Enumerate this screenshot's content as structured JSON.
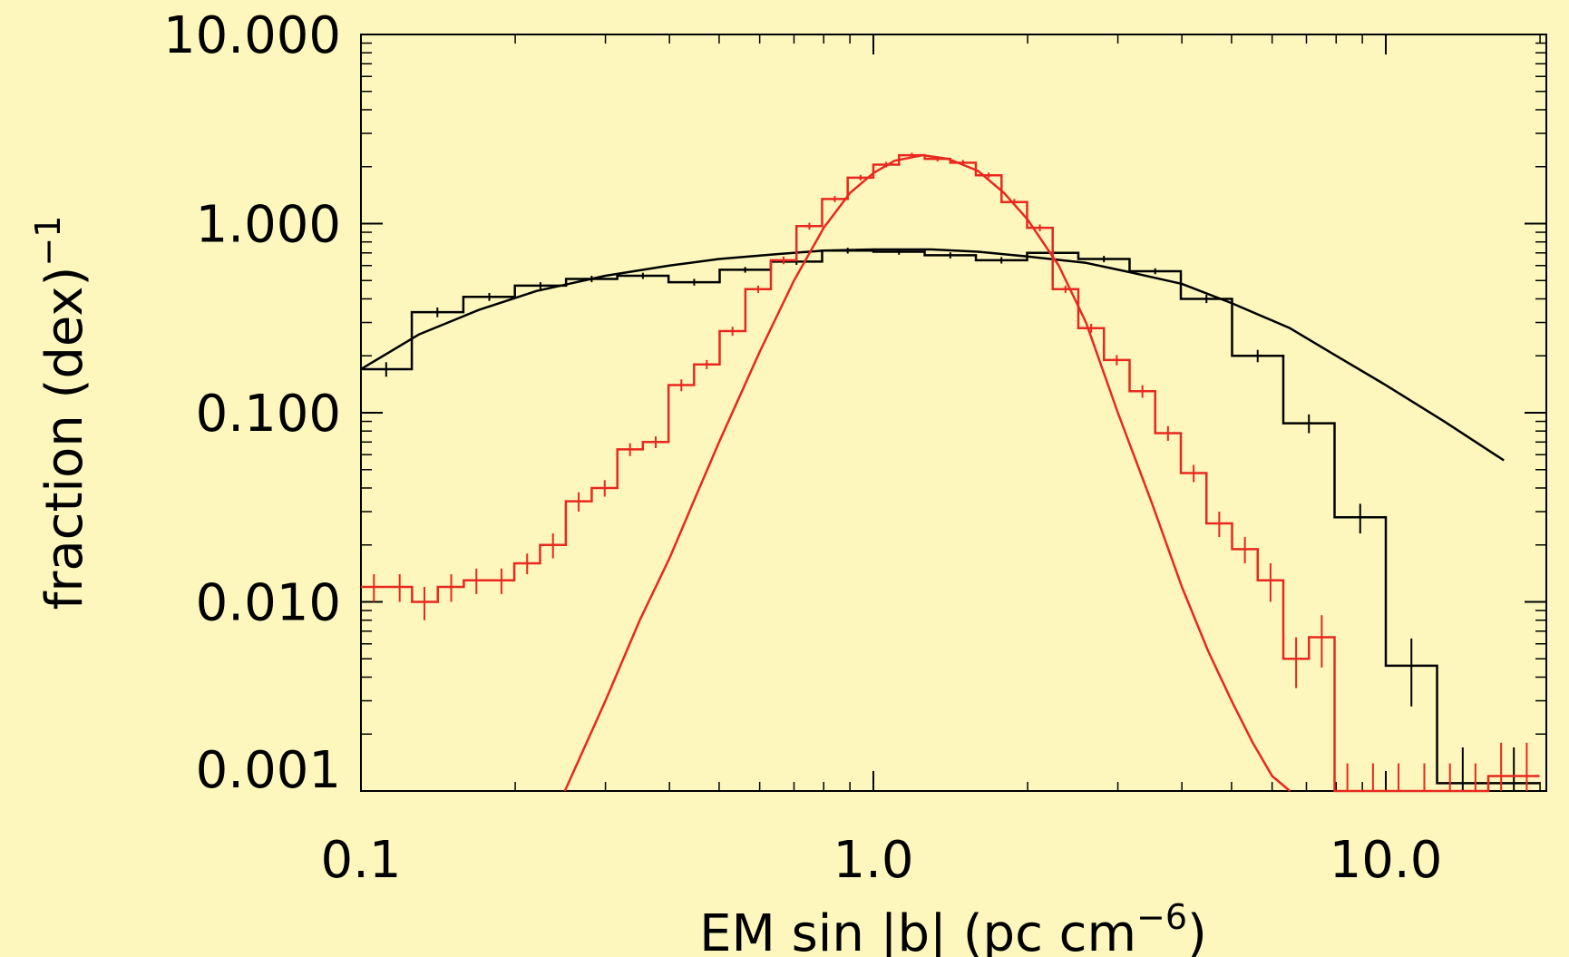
{
  "chart_data": {
    "type": "line",
    "xlabel_main": "EM sin |b| (pc cm",
    "xlabel_sup": "−6",
    "xlabel_close": ")",
    "ylabel_main": "fraction (dex)",
    "ylabel_sup": "−1",
    "x_scale": "log",
    "y_scale": "log",
    "xlim": [
      0.1,
      20.0
    ],
    "ylim": [
      0.001,
      10.0
    ],
    "x_ticks": [
      {
        "value": 0.1,
        "label": "0.1"
      },
      {
        "value": 1.0,
        "label": "1.0"
      },
      {
        "value": 10.0,
        "label": "10.0"
      }
    ],
    "y_ticks": [
      {
        "value": 10.0,
        "label": "10.000"
      },
      {
        "value": 1.0,
        "label": "1.000"
      },
      {
        "value": 0.1,
        "label": "0.100"
      },
      {
        "value": 0.01,
        "label": "0.010"
      },
      {
        "value": 0.001,
        "label": "0.001"
      }
    ],
    "grid": false,
    "legend": "none",
    "colors": {
      "background": "#fdf7bd",
      "black_series": "#000000",
      "red_series": "#e8281e"
    },
    "series": [
      {
        "kind": "histogram",
        "color": "#000000",
        "bin_centers": [
          0.112,
          0.141,
          0.178,
          0.224,
          0.282,
          0.355,
          0.447,
          0.562,
          0.708,
          0.891,
          1.122,
          1.413,
          1.778,
          2.239,
          2.818,
          3.548,
          4.467,
          5.623,
          7.079,
          8.913,
          11.22,
          14.13,
          17.78
        ],
        "values": [
          0.17,
          0.34,
          0.41,
          0.47,
          0.51,
          0.53,
          0.49,
          0.57,
          0.63,
          0.72,
          0.71,
          0.68,
          0.64,
          0.7,
          0.65,
          0.56,
          0.4,
          0.2,
          0.088,
          0.028,
          0.0046,
          0.0011,
          0.0011
        ],
        "errors": [
          0.015,
          0.02,
          0.02,
          0.02,
          0.02,
          0.02,
          0.02,
          0.02,
          0.025,
          0.025,
          0.025,
          0.025,
          0.025,
          0.025,
          0.025,
          0.02,
          0.02,
          0.015,
          0.01,
          0.005,
          0.0018,
          0.0006,
          0.0006
        ]
      },
      {
        "kind": "fit_curve",
        "color": "#000000",
        "x": [
          0.1,
          0.13,
          0.17,
          0.22,
          0.3,
          0.4,
          0.5,
          0.65,
          0.8,
          1.0,
          1.3,
          1.6,
          2.0,
          2.6,
          3.2,
          4.0,
          5.0,
          6.5,
          8.0,
          10.0,
          13.0,
          17.0
        ],
        "y": [
          0.17,
          0.26,
          0.35,
          0.44,
          0.53,
          0.6,
          0.65,
          0.69,
          0.72,
          0.73,
          0.73,
          0.71,
          0.67,
          0.62,
          0.55,
          0.48,
          0.38,
          0.28,
          0.2,
          0.14,
          0.09,
          0.056
        ]
      },
      {
        "kind": "histogram",
        "color": "#e8281e",
        "bin_centers": [
          0.106,
          0.119,
          0.133,
          0.15,
          0.168,
          0.188,
          0.211,
          0.237,
          0.266,
          0.299,
          0.335,
          0.376,
          0.422,
          0.473,
          0.531,
          0.596,
          0.668,
          0.75,
          0.841,
          0.944,
          1.059,
          1.189,
          1.334,
          1.496,
          1.679,
          1.884,
          2.113,
          2.371,
          2.661,
          2.985,
          3.35,
          3.758,
          4.217,
          4.731,
          5.309,
          5.957,
          6.683,
          7.499,
          8.414,
          9.441,
          10.59,
          11.89,
          13.34,
          14.96,
          16.79,
          18.84
        ],
        "values": [
          0.012,
          0.012,
          0.01,
          0.012,
          0.013,
          0.013,
          0.016,
          0.02,
          0.034,
          0.04,
          0.064,
          0.07,
          0.14,
          0.18,
          0.27,
          0.45,
          0.64,
          0.97,
          1.35,
          1.75,
          2.05,
          2.3,
          2.2,
          2.1,
          1.8,
          1.3,
          0.95,
          0.45,
          0.28,
          0.19,
          0.13,
          0.078,
          0.048,
          0.026,
          0.019,
          0.013,
          0.005,
          0.0065,
          0.0008,
          0.0008,
          0.0008,
          0.0008,
          0.0008,
          0.0008,
          0.0012,
          0.0012
        ],
        "errors": [
          0.002,
          0.002,
          0.002,
          0.002,
          0.002,
          0.002,
          0.002,
          0.003,
          0.004,
          0.004,
          0.005,
          0.005,
          0.01,
          0.01,
          0.015,
          0.02,
          0.03,
          0.04,
          0.05,
          0.06,
          0.07,
          0.07,
          0.07,
          0.07,
          0.06,
          0.05,
          0.04,
          0.02,
          0.015,
          0.012,
          0.01,
          0.007,
          0.005,
          0.004,
          0.003,
          0.003,
          0.0015,
          0.002,
          0.0006,
          0.0006,
          0.0006,
          0.0006,
          0.0006,
          0.0006,
          0.0006,
          0.0006
        ]
      },
      {
        "kind": "fit_curve",
        "color": "#e8281e",
        "x": [
          0.25,
          0.3,
          0.35,
          0.4,
          0.45,
          0.5,
          0.6,
          0.7,
          0.8,
          0.9,
          1.0,
          1.1,
          1.25,
          1.4,
          1.6,
          1.8,
          2.0,
          2.3,
          2.6,
          3.0,
          3.5,
          4.0,
          4.5,
          5.0,
          5.5,
          6.0,
          6.5
        ],
        "y": [
          0.001,
          0.003,
          0.008,
          0.017,
          0.036,
          0.07,
          0.21,
          0.5,
          0.95,
          1.45,
          1.85,
          2.15,
          2.3,
          2.2,
          1.9,
          1.45,
          1.05,
          0.6,
          0.3,
          0.1,
          0.033,
          0.012,
          0.0055,
          0.003,
          0.0018,
          0.0012,
          0.001
        ]
      }
    ]
  }
}
